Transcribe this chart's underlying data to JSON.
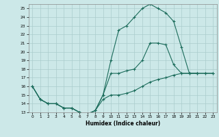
{
  "title": "",
  "xlabel": "Humidex (Indice chaleur)",
  "background_color": "#cce8e8",
  "grid_color": "#aacccc",
  "line_color": "#1a6b5a",
  "xlim": [
    -0.5,
    23.5
  ],
  "ylim": [
    13,
    25.5
  ],
  "xticks": [
    0,
    1,
    2,
    3,
    4,
    5,
    6,
    7,
    8,
    9,
    10,
    11,
    12,
    13,
    14,
    15,
    16,
    17,
    18,
    19,
    20,
    21,
    22,
    23
  ],
  "yticks": [
    13,
    14,
    15,
    16,
    17,
    18,
    19,
    20,
    21,
    22,
    23,
    24,
    25
  ],
  "series": [
    {
      "x": [
        0,
        1,
        2,
        3,
        4,
        5,
        6,
        7,
        8,
        9,
        10,
        11,
        12,
        13,
        14,
        15,
        16,
        17,
        18,
        19,
        20,
        21
      ],
      "y": [
        16,
        14.5,
        14,
        14,
        13.5,
        13.5,
        13.0,
        12.8,
        13.2,
        15.0,
        19.0,
        22.5,
        23.0,
        24.0,
        25.0,
        25.5,
        25.0,
        24.5,
        23.5,
        20.5,
        17.5,
        17.5
      ]
    },
    {
      "x": [
        0,
        1,
        2,
        3,
        4,
        5,
        6,
        7,
        8,
        9,
        10,
        11,
        12,
        13,
        14,
        15,
        16,
        17,
        18,
        19,
        20,
        21,
        22,
        23
      ],
      "y": [
        16,
        14.5,
        14,
        14,
        13.5,
        13.5,
        13.0,
        12.8,
        13.2,
        15.0,
        17.5,
        17.5,
        17.8,
        18.0,
        19.0,
        21.0,
        21.0,
        20.8,
        18.5,
        17.5,
        17.5,
        17.5,
        17.5,
        17.5
      ]
    },
    {
      "x": [
        0,
        1,
        2,
        3,
        4,
        5,
        6,
        7,
        8,
        9,
        10,
        11,
        12,
        13,
        14,
        15,
        16,
        17,
        18,
        19,
        20,
        21,
        22,
        23
      ],
      "y": [
        16,
        14.5,
        14,
        14,
        13.5,
        13.5,
        13.0,
        12.8,
        13.2,
        14.5,
        15.0,
        15.0,
        15.2,
        15.5,
        16.0,
        16.5,
        16.8,
        17.0,
        17.3,
        17.5,
        17.5,
        17.5,
        17.5,
        17.5
      ]
    }
  ]
}
